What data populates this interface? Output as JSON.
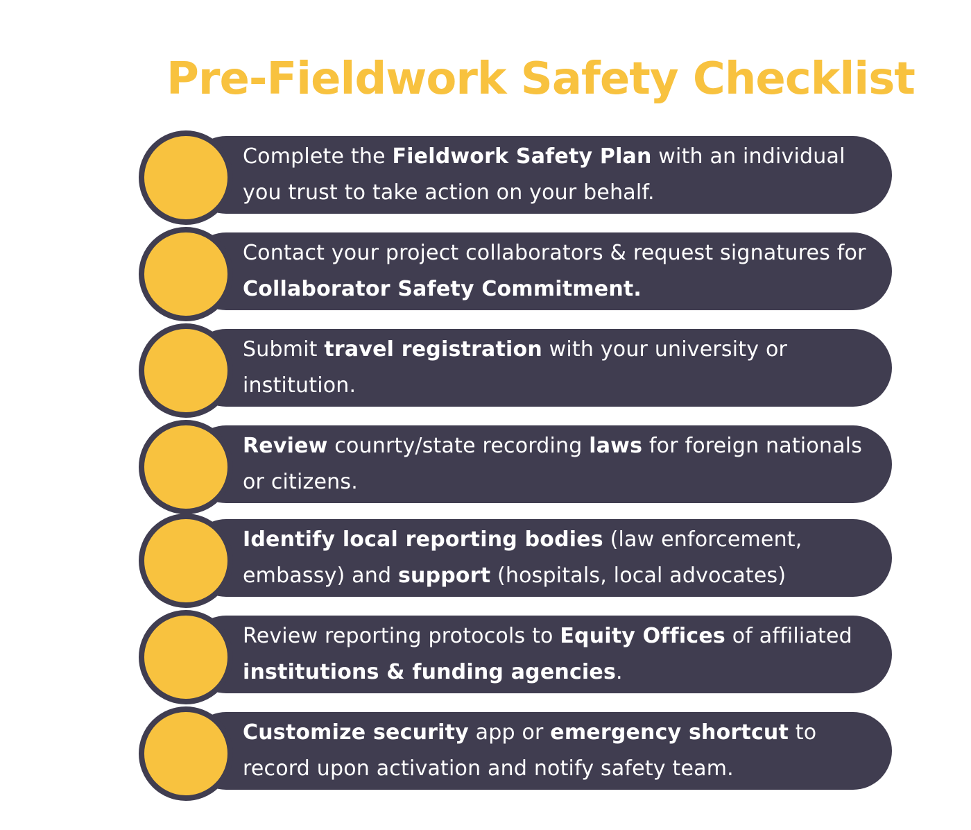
{
  "title": "Pre-Fieldwork Safety Checklist",
  "colors": {
    "accent": "#f8c23f",
    "pill": "#403d50",
    "text": "#ffffff"
  },
  "items": [
    {
      "segments": [
        {
          "text": "Complete the ",
          "bold": false
        },
        {
          "text": "Fieldwork Safety Plan",
          "bold": true
        },
        {
          "text": " with an individual you trust to take action on your behalf.",
          "bold": false
        }
      ]
    },
    {
      "segments": [
        {
          "text": "Contact your project collaborators & request signatures for ",
          "bold": false
        },
        {
          "text": "Collaborator Safety Commitment.",
          "bold": true
        }
      ]
    },
    {
      "segments": [
        {
          "text": "Submit ",
          "bold": false
        },
        {
          "text": "travel registration",
          "bold": true
        },
        {
          "text": " with your university or institution.",
          "bold": false
        }
      ]
    },
    {
      "segments": [
        {
          "text": " ",
          "bold": false
        },
        {
          "text": "Review",
          "bold": true
        },
        {
          "text": " counrty/state recording ",
          "bold": false
        },
        {
          "text": "laws",
          "bold": true
        },
        {
          "text": " for foreign nationals or citizens.",
          "bold": false
        }
      ]
    },
    {
      "segments": [
        {
          "text": "Identify local reporting bodies",
          "bold": true
        },
        {
          "text": " (law enforcement, embassy) and ",
          "bold": false
        },
        {
          "text": "support",
          "bold": true
        },
        {
          "text": " (hospitals, local advocates)",
          "bold": false
        }
      ]
    },
    {
      "segments": [
        {
          "text": "Review reporting protocols to ",
          "bold": false
        },
        {
          "text": "Equity Offices",
          "bold": true
        },
        {
          "text": " of affiliated ",
          "bold": false
        },
        {
          "text": "institutions & funding agencies",
          "bold": true
        },
        {
          "text": ".",
          "bold": false
        }
      ]
    },
    {
      "segments": [
        {
          "text": "Customize security",
          "bold": true
        },
        {
          "text": " app or ",
          "bold": false
        },
        {
          "text": "emergency shortcut",
          "bold": true
        },
        {
          "text": " to record upon activation and notify safety team.",
          "bold": false
        }
      ]
    }
  ]
}
